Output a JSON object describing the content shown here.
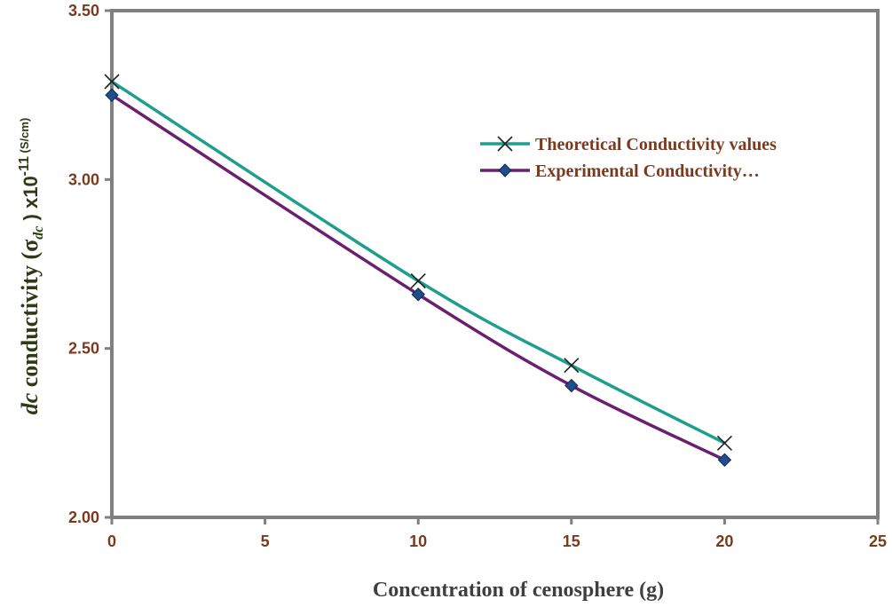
{
  "chart_data": {
    "type": "line",
    "xlabel": "Concentration of cenosphere (g)",
    "ylabel": {
      "prefix_italic": "dc",
      "main": " conductivity (",
      "sigma": "σ",
      "sigma_sub": "dc",
      "close": " ) x10",
      "exp": "-11",
      "unit": " (S/cm)"
    },
    "xlim": [
      0,
      25
    ],
    "ylim": [
      2.0,
      3.5
    ],
    "xticks": [
      0,
      5,
      10,
      15,
      20,
      25
    ],
    "xtick_labels": [
      "0",
      "5",
      "10",
      "15",
      "20",
      "25"
    ],
    "yticks": [
      2.0,
      2.5,
      3.0,
      3.5
    ],
    "ytick_labels": [
      "2.00",
      "2.50",
      "3.00",
      "3.50"
    ],
    "grid": false,
    "legend_position": "center-right",
    "series": [
      {
        "name": "Theoretical Conductivity values",
        "x": [
          0,
          10,
          15,
          20
        ],
        "y": [
          3.29,
          2.7,
          2.45,
          2.22
        ],
        "color": "#1e9e8c",
        "marker": "x-cross"
      },
      {
        "name": "Experimental Conductivity…",
        "x": [
          0,
          10,
          15,
          20
        ],
        "y": [
          3.25,
          2.66,
          2.39,
          2.17
        ],
        "color": "#6a1f6f",
        "marker": "diamond",
        "marker_color": "#1f4e8c"
      }
    ]
  }
}
